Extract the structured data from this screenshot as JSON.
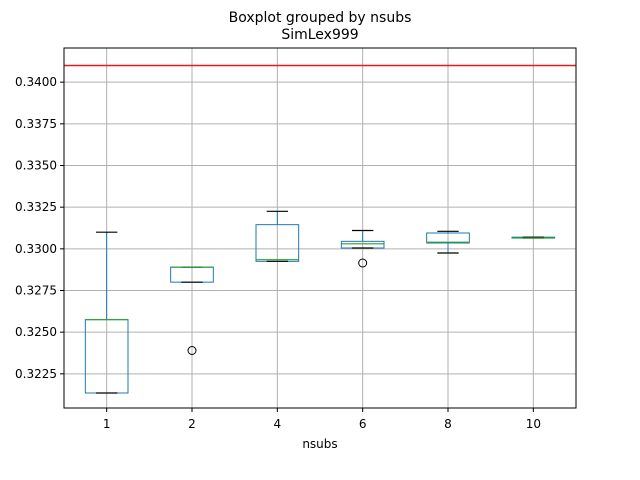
{
  "chart_data": {
    "type": "boxplot",
    "title": "Boxplot grouped by nsubs",
    "subtitle": "SimLex999",
    "xlabel": "nsubs",
    "ylabel": "",
    "categories": [
      "1",
      "2",
      "4",
      "6",
      "8",
      "10"
    ],
    "ylim": [
      0.32045,
      0.34205
    ],
    "yticks": [
      0.3225,
      0.325,
      0.3275,
      0.33,
      0.3325,
      0.335,
      0.3375,
      0.34
    ],
    "ytick_labels": [
      "0.3225",
      "0.3250",
      "0.3275",
      "0.3300",
      "0.3325",
      "0.3350",
      "0.3375",
      "0.3400"
    ],
    "grid": true,
    "reference_line": {
      "value": 0.341,
      "color": "#e41a1c"
    },
    "boxes": [
      {
        "category": "1",
        "whisker_low": 0.32135,
        "q1": 0.32135,
        "median": 0.32575,
        "q3": 0.32575,
        "whisker_high": 0.331,
        "outliers": []
      },
      {
        "category": "2",
        "whisker_low": 0.328,
        "q1": 0.328,
        "median": 0.3289,
        "q3": 0.3289,
        "whisker_high": 0.3289,
        "outliers": [
          0.3239
        ]
      },
      {
        "category": "4",
        "whisker_low": 0.32925,
        "q1": 0.32925,
        "median": 0.32935,
        "q3": 0.33145,
        "whisker_high": 0.33225,
        "outliers": []
      },
      {
        "category": "6",
        "whisker_low": 0.33005,
        "q1": 0.33005,
        "median": 0.3303,
        "q3": 0.33045,
        "whisker_high": 0.3311,
        "outliers": [
          0.32915
        ]
      },
      {
        "category": "8",
        "whisker_low": 0.32975,
        "q1": 0.33035,
        "median": 0.3304,
        "q3": 0.33095,
        "whisker_high": 0.33105,
        "outliers": []
      },
      {
        "category": "10",
        "whisker_low": 0.33065,
        "q1": 0.33065,
        "median": 0.33065,
        "q3": 0.3307,
        "whisker_high": 0.3307,
        "outliers": []
      }
    ],
    "colors": {
      "box": "#1f77b4",
      "median": "#2ca02c",
      "whisker": "#000000",
      "grid": "#b0b0b0",
      "reference_line": "#e41a1c"
    }
  }
}
